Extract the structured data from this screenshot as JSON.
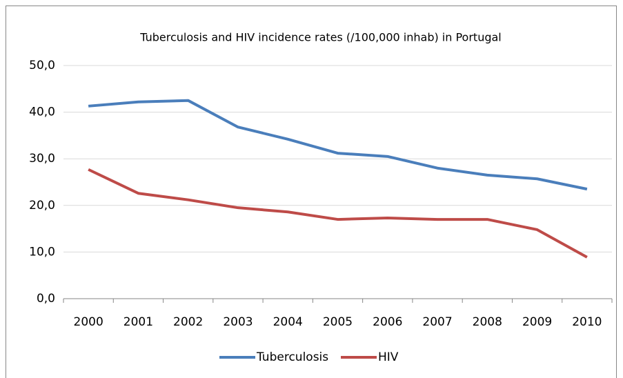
{
  "chart_data": {
    "type": "line",
    "title": "Tuberculosis and HIV  incidence rates (/100,000 inhab) in Portugal",
    "categories": [
      "2000",
      "2001",
      "2002",
      "2003",
      "2004",
      "2005",
      "2006",
      "2007",
      "2008",
      "2009",
      "2010"
    ],
    "series": [
      {
        "name": "Tuberculosis",
        "color": "#4a7ebb",
        "values": [
          41.3,
          42.2,
          42.5,
          36.8,
          34.2,
          31.2,
          30.5,
          28.0,
          26.5,
          25.7,
          23.5
        ]
      },
      {
        "name": "HIV",
        "color": "#be4b48",
        "values": [
          27.7,
          22.6,
          21.2,
          19.5,
          18.6,
          17.0,
          17.3,
          17.0,
          17.0,
          14.8,
          8.9
        ]
      }
    ],
    "ylim": [
      0,
      50
    ],
    "yticks": [
      {
        "value": 0,
        "label": "0,0"
      },
      {
        "value": 10,
        "label": "10,0"
      },
      {
        "value": 20,
        "label": "20,0"
      },
      {
        "value": 30,
        "label": "30,0"
      },
      {
        "value": 40,
        "label": "40,0"
      },
      {
        "value": 50,
        "label": "50,0"
      }
    ],
    "grid": true,
    "legend": "bottom"
  }
}
